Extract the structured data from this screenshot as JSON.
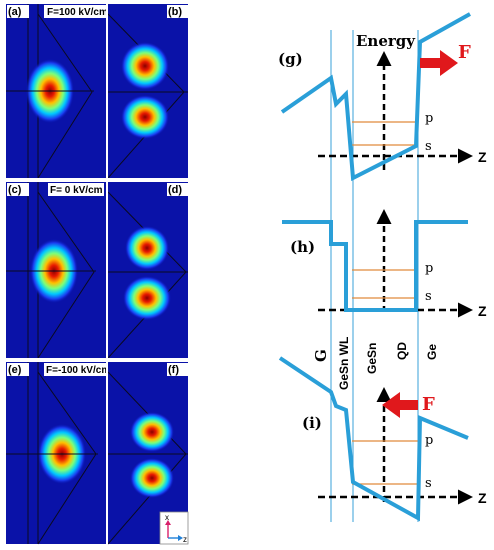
{
  "panels": {
    "a": {
      "label": "(a)",
      "field": "F=100 kV/cm"
    },
    "b": {
      "label": "(b)"
    },
    "c": {
      "label": "(c)",
      "field": "F= 0 kV/cm"
    },
    "d": {
      "label": "(d)"
    },
    "e": {
      "label": "(e)",
      "field": "F=-100 kV/cm"
    },
    "f": {
      "label": "(f)"
    }
  },
  "axes_inset": {
    "x": "x",
    "z": "z"
  },
  "diagrams": {
    "g": {
      "label": "(g)",
      "y_axis": "Energy",
      "x_axis": "Z",
      "force": "F",
      "p_level": "p",
      "s_level": "s"
    },
    "h": {
      "label": "(h)",
      "x_axis": "Z",
      "p_level": "p",
      "s_level": "s"
    },
    "i": {
      "label": "(i)",
      "x_axis": "Z",
      "force": "F",
      "p_level": "p",
      "s_level": "s"
    }
  },
  "regions": [
    "G",
    "GeSn WL",
    "GeSn",
    "QD",
    "Ge"
  ],
  "colors": {
    "band": "#2a9fd8",
    "level": "#e08a3c",
    "force": "#e0181c",
    "divider": "#3aa0d8"
  }
}
